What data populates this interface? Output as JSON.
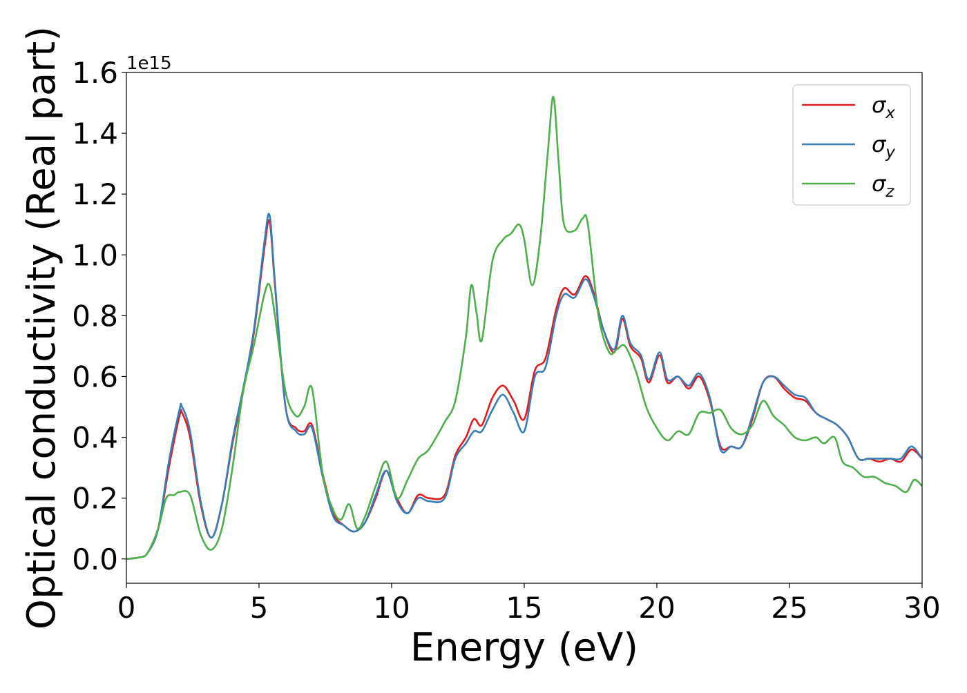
{
  "chart_data": {
    "type": "line",
    "xlabel": "Energy (eV)",
    "ylabel": "Optical conductivity (Real part)",
    "y_offset_label": "1e15",
    "xlim": [
      0,
      30
    ],
    "ylim": [
      -0.08,
      1.6
    ],
    "x_ticks": [
      0,
      5,
      10,
      15,
      20,
      25,
      30
    ],
    "x_tick_labels": [
      "0",
      "5",
      "10",
      "15",
      "20",
      "25",
      "30"
    ],
    "y_ticks": [
      0.0,
      0.2,
      0.4,
      0.6,
      0.8,
      1.0,
      1.2,
      1.4,
      1.6
    ],
    "y_tick_labels": [
      "0.0",
      "0.2",
      "0.4",
      "0.6",
      "0.8",
      "1.0",
      "1.2",
      "1.4",
      "1.6"
    ],
    "grid": false,
    "legend_position": "top-right",
    "series": [
      {
        "name": "σx",
        "color": "#e41a1c",
        "x": [
          0,
          0.5,
          0.8,
          1.2,
          1.6,
          2.0,
          2.1,
          2.4,
          2.8,
          3.2,
          3.6,
          4.0,
          4.4,
          4.8,
          5.2,
          5.4,
          5.6,
          6.0,
          6.4,
          6.7,
          7.0,
          7.4,
          7.8,
          8.2,
          8.6,
          9.0,
          9.4,
          9.8,
          10.2,
          10.6,
          11.0,
          11.4,
          12.0,
          12.4,
          12.8,
          13.1,
          13.4,
          13.8,
          14.2,
          14.6,
          15.0,
          15.4,
          15.8,
          16.2,
          16.5,
          16.9,
          17.3,
          17.6,
          18.0,
          18.4,
          18.7,
          19.0,
          19.4,
          19.7,
          20.1,
          20.4,
          20.8,
          21.2,
          21.6,
          22.0,
          22.4,
          22.8,
          23.2,
          23.6,
          24.0,
          24.4,
          24.8,
          25.2,
          25.6,
          26.0,
          26.4,
          26.8,
          27.2,
          27.6,
          28.0,
          28.4,
          28.8,
          29.2,
          29.6,
          30.0
        ],
        "values": [
          0.0,
          0.005,
          0.02,
          0.1,
          0.3,
          0.47,
          0.48,
          0.4,
          0.18,
          0.07,
          0.18,
          0.38,
          0.55,
          0.74,
          1.02,
          1.11,
          0.9,
          0.5,
          0.43,
          0.42,
          0.44,
          0.28,
          0.15,
          0.11,
          0.09,
          0.12,
          0.2,
          0.29,
          0.2,
          0.15,
          0.21,
          0.2,
          0.21,
          0.34,
          0.4,
          0.46,
          0.44,
          0.53,
          0.57,
          0.52,
          0.46,
          0.62,
          0.66,
          0.82,
          0.89,
          0.87,
          0.93,
          0.88,
          0.75,
          0.68,
          0.79,
          0.7,
          0.66,
          0.58,
          0.67,
          0.58,
          0.6,
          0.56,
          0.6,
          0.52,
          0.37,
          0.37,
          0.37,
          0.46,
          0.58,
          0.6,
          0.56,
          0.53,
          0.52,
          0.48,
          0.46,
          0.44,
          0.4,
          0.33,
          0.33,
          0.32,
          0.33,
          0.32,
          0.36,
          0.33
        ]
      },
      {
        "name": "σy",
        "color": "#377eb8",
        "x": [
          0,
          0.5,
          0.8,
          1.2,
          1.6,
          2.0,
          2.1,
          2.4,
          2.8,
          3.2,
          3.6,
          4.0,
          4.4,
          4.8,
          5.2,
          5.4,
          5.6,
          6.0,
          6.4,
          6.7,
          7.0,
          7.4,
          7.8,
          8.2,
          8.6,
          9.0,
          9.4,
          9.8,
          10.2,
          10.6,
          11.0,
          11.4,
          12.0,
          12.4,
          12.8,
          13.1,
          13.4,
          13.8,
          14.2,
          14.6,
          15.0,
          15.4,
          15.8,
          16.2,
          16.5,
          16.9,
          17.3,
          17.6,
          18.0,
          18.4,
          18.7,
          19.0,
          19.4,
          19.7,
          20.1,
          20.4,
          20.8,
          21.2,
          21.6,
          22.0,
          22.4,
          22.8,
          23.2,
          23.6,
          24.0,
          24.4,
          24.8,
          25.2,
          25.6,
          26.0,
          26.4,
          26.8,
          27.2,
          27.6,
          28.0,
          28.4,
          28.8,
          29.2,
          29.6,
          30.0
        ],
        "values": [
          0.0,
          0.005,
          0.02,
          0.1,
          0.32,
          0.49,
          0.5,
          0.42,
          0.19,
          0.07,
          0.18,
          0.39,
          0.56,
          0.75,
          1.04,
          1.13,
          0.91,
          0.5,
          0.42,
          0.41,
          0.43,
          0.27,
          0.14,
          0.11,
          0.09,
          0.12,
          0.21,
          0.29,
          0.19,
          0.15,
          0.2,
          0.19,
          0.2,
          0.33,
          0.38,
          0.42,
          0.42,
          0.49,
          0.54,
          0.48,
          0.42,
          0.6,
          0.63,
          0.8,
          0.87,
          0.86,
          0.92,
          0.87,
          0.75,
          0.69,
          0.8,
          0.71,
          0.67,
          0.59,
          0.68,
          0.59,
          0.6,
          0.57,
          0.61,
          0.53,
          0.36,
          0.37,
          0.37,
          0.47,
          0.58,
          0.6,
          0.57,
          0.54,
          0.53,
          0.48,
          0.46,
          0.44,
          0.4,
          0.33,
          0.33,
          0.33,
          0.33,
          0.33,
          0.37,
          0.33
        ]
      },
      {
        "name": "σz",
        "color": "#4daf4a",
        "x": [
          0,
          0.5,
          0.8,
          1.2,
          1.5,
          1.8,
          2.0,
          2.4,
          2.8,
          3.2,
          3.6,
          4.0,
          4.4,
          4.8,
          5.2,
          5.4,
          5.6,
          6.0,
          6.4,
          6.7,
          7.0,
          7.4,
          7.8,
          8.1,
          8.4,
          8.7,
          9.0,
          9.4,
          9.8,
          10.2,
          10.6,
          11.0,
          11.4,
          12.0,
          12.4,
          12.8,
          13.0,
          13.2,
          13.4,
          13.8,
          14.2,
          14.5,
          14.8,
          15.0,
          15.3,
          15.6,
          15.9,
          16.1,
          16.3,
          16.5,
          16.9,
          17.2,
          17.4,
          17.8,
          18.2,
          18.5,
          18.8,
          19.2,
          19.6,
          20.0,
          20.4,
          20.8,
          21.2,
          21.6,
          22.0,
          22.4,
          22.8,
          23.2,
          23.6,
          24.0,
          24.4,
          24.8,
          25.2,
          25.6,
          26.0,
          26.3,
          26.7,
          27.0,
          27.4,
          27.8,
          28.2,
          28.6,
          29.0,
          29.4,
          29.7,
          30.0
        ],
        "values": [
          0.0,
          0.005,
          0.02,
          0.1,
          0.2,
          0.21,
          0.22,
          0.21,
          0.08,
          0.03,
          0.1,
          0.3,
          0.55,
          0.7,
          0.87,
          0.9,
          0.8,
          0.55,
          0.47,
          0.5,
          0.56,
          0.28,
          0.16,
          0.13,
          0.18,
          0.1,
          0.14,
          0.24,
          0.32,
          0.2,
          0.26,
          0.33,
          0.36,
          0.45,
          0.52,
          0.73,
          0.9,
          0.81,
          0.72,
          0.98,
          1.05,
          1.07,
          1.1,
          1.05,
          0.9,
          1.05,
          1.35,
          1.52,
          1.3,
          1.1,
          1.08,
          1.12,
          1.1,
          0.8,
          0.68,
          0.69,
          0.7,
          0.62,
          0.5,
          0.43,
          0.39,
          0.42,
          0.41,
          0.48,
          0.48,
          0.49,
          0.43,
          0.41,
          0.44,
          0.52,
          0.47,
          0.44,
          0.4,
          0.39,
          0.4,
          0.38,
          0.4,
          0.32,
          0.3,
          0.27,
          0.27,
          0.25,
          0.24,
          0.22,
          0.26,
          0.24
        ]
      }
    ]
  }
}
